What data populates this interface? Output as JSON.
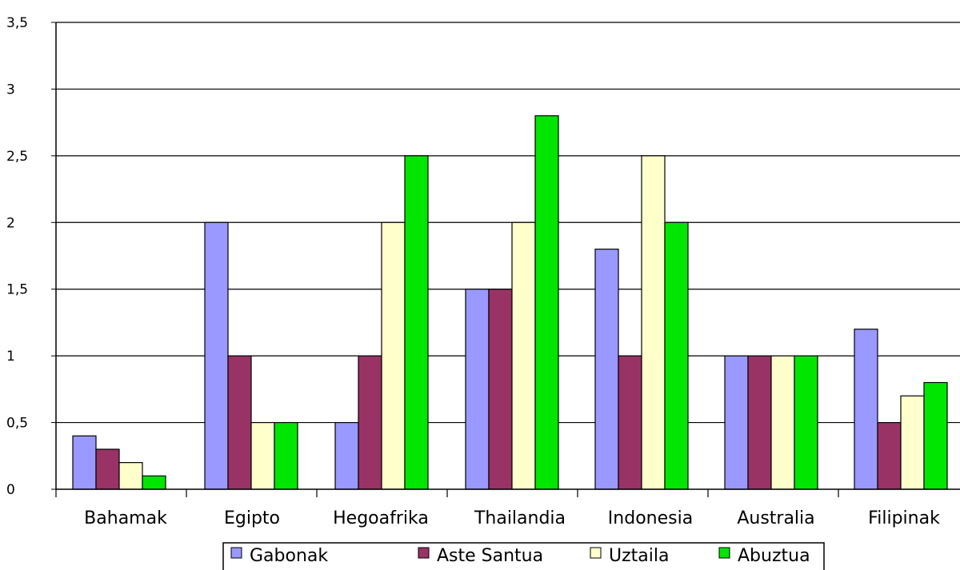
{
  "chart_data": {
    "type": "bar",
    "categories": [
      "Bahamak",
      "Egipto",
      "Hegoafrika",
      "Thailandia",
      "Indonesia",
      "Australia",
      "Filipinak"
    ],
    "series": [
      {
        "name": "Gabonak",
        "color": "#9999FF",
        "values": [
          0.4,
          2,
          0.5,
          1.5,
          1.8,
          1,
          1.2
        ]
      },
      {
        "name": "Aste Santua",
        "color": "#993366",
        "values": [
          0.3,
          1,
          1,
          1.5,
          1,
          1,
          0.5
        ]
      },
      {
        "name": "Uztaila",
        "color": "#FFFFCC",
        "values": [
          0.2,
          0.5,
          2,
          2,
          2.5,
          1,
          0.7
        ]
      },
      {
        "name": "Abuztua",
        "color": "#00E600",
        "values": [
          0.1,
          0.5,
          2.5,
          2.8,
          2,
          1,
          0.8
        ]
      }
    ],
    "yticks": [
      "0",
      "0,5",
      "1",
      "1,5",
      "2",
      "2,5",
      "3",
      "3,5"
    ],
    "ylim": [
      0,
      3.5
    ],
    "grid": true,
    "legend_position": "bottom",
    "title": "",
    "xlabel": "",
    "ylabel": ""
  }
}
